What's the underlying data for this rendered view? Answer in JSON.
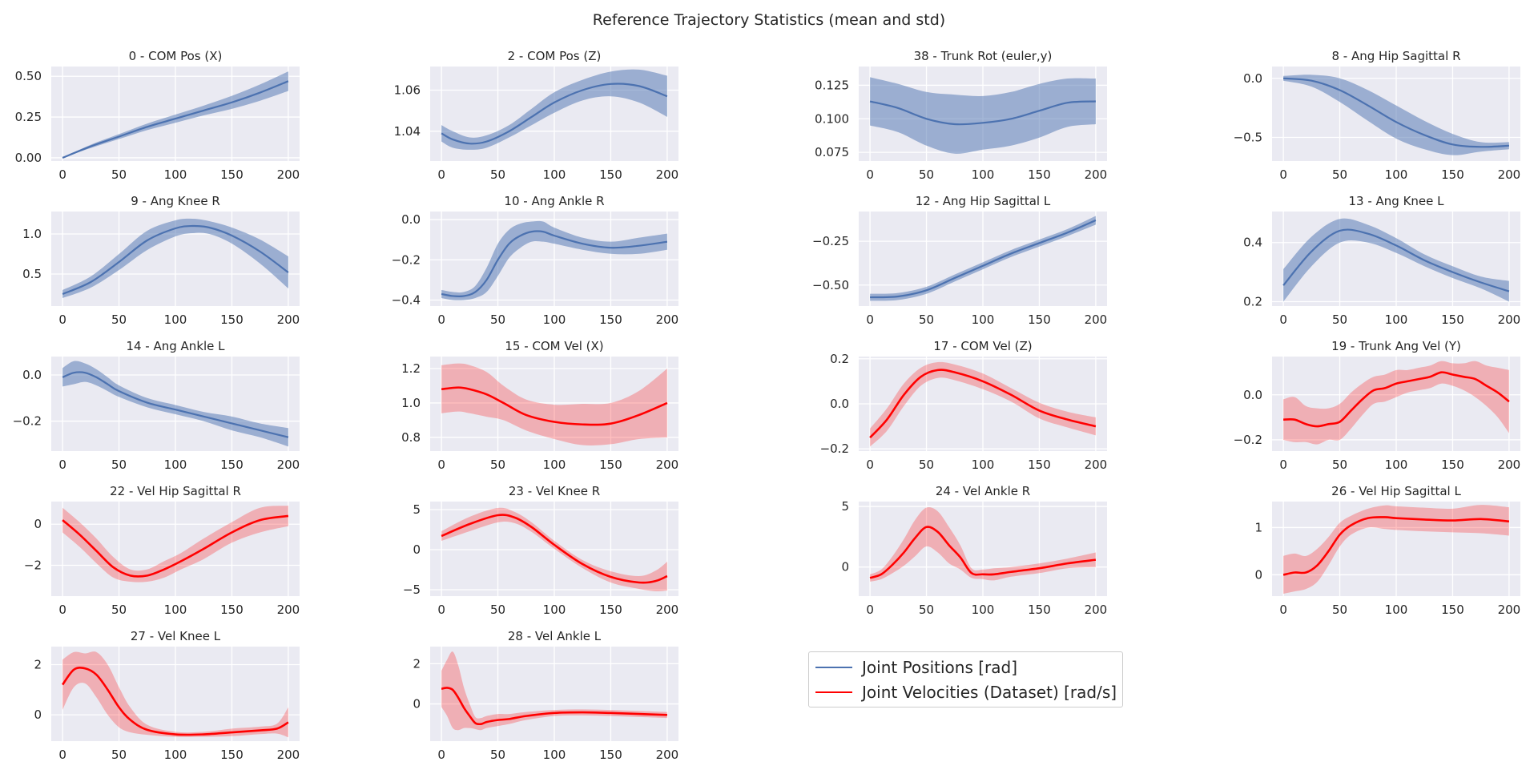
{
  "figure": {
    "title": "Reference Trajectory Statistics (mean and std)",
    "style": {
      "background": "#EAEAF2",
      "grid": true,
      "grid_color": "#ffffff"
    },
    "colors": {
      "positions": "#4C72B0",
      "velocities": "#FF0000"
    },
    "legend": {
      "placement": "lower-center",
      "entries": [
        {
          "label": "Joint Positions [rad]",
          "color": "#4C72B0"
        },
        {
          "label": "Joint Velocities (Dataset) [rad/s]",
          "color": "#FF0000"
        }
      ]
    }
  },
  "chart_data": [
    {
      "type": "line",
      "title": "0 - COM Pos (X)",
      "kind": "position",
      "xlim": [
        0,
        200
      ],
      "ylim": [
        -0.02,
        0.56
      ],
      "xticks": [
        0,
        50,
        100,
        150,
        200
      ],
      "yticks": [
        0.0,
        0.25,
        0.5
      ],
      "ytick_labels": [
        "0.00",
        "0.25",
        "0.50"
      ],
      "x": [
        0,
        25,
        50,
        75,
        100,
        125,
        150,
        175,
        200
      ],
      "mean": [
        0.0,
        0.07,
        0.13,
        0.19,
        0.24,
        0.29,
        0.34,
        0.4,
        0.47
      ],
      "std": [
        0.0,
        0.01,
        0.015,
        0.02,
        0.025,
        0.03,
        0.04,
        0.05,
        0.06
      ]
    },
    {
      "type": "line",
      "title": "2 - COM Pos (Z)",
      "kind": "position",
      "xlim": [
        0,
        200
      ],
      "ylim": [
        1.0255,
        1.0715
      ],
      "xticks": [
        0,
        50,
        100,
        150,
        200
      ],
      "yticks": [
        1.04,
        1.06
      ],
      "ytick_labels": [
        "1.04",
        "1.06"
      ],
      "x": [
        0,
        10,
        25,
        40,
        60,
        80,
        100,
        125,
        150,
        175,
        200
      ],
      "mean": [
        1.039,
        1.036,
        1.034,
        1.035,
        1.04,
        1.047,
        1.054,
        1.06,
        1.063,
        1.062,
        1.057
      ],
      "std": [
        0.004,
        0.004,
        0.003,
        0.003,
        0.003,
        0.004,
        0.005,
        0.005,
        0.006,
        0.008,
        0.01
      ]
    },
    {
      "type": "line",
      "title": "38 - Trunk Rot (euler,y)",
      "kind": "position",
      "xlim": [
        0,
        200
      ],
      "ylim": [
        0.0685,
        0.139
      ],
      "xticks": [
        0,
        50,
        100,
        150,
        200
      ],
      "yticks": [
        0.075,
        0.1,
        0.125
      ],
      "ytick_labels": [
        "0.075",
        "0.100",
        "0.125"
      ],
      "x": [
        0,
        25,
        50,
        75,
        100,
        125,
        150,
        175,
        200
      ],
      "mean": [
        0.113,
        0.108,
        0.1,
        0.096,
        0.097,
        0.1,
        0.106,
        0.112,
        0.113
      ],
      "std": [
        0.018,
        0.018,
        0.02,
        0.022,
        0.02,
        0.02,
        0.02,
        0.018,
        0.017
      ]
    },
    {
      "type": "line",
      "title": "8 - Ang Hip Sagittal R",
      "kind": "position",
      "xlim": [
        0,
        200
      ],
      "ylim": [
        -0.7,
        0.1
      ],
      "xticks": [
        0,
        50,
        100,
        150,
        200
      ],
      "yticks": [
        0.0,
        -0.5
      ],
      "ytick_labels": [
        "0.0",
        "−0.5"
      ],
      "x": [
        0,
        25,
        50,
        75,
        100,
        125,
        150,
        175,
        200
      ],
      "mean": [
        0.0,
        -0.02,
        -0.1,
        -0.23,
        -0.37,
        -0.48,
        -0.56,
        -0.58,
        -0.57
      ],
      "std": [
        0.02,
        0.05,
        0.1,
        0.13,
        0.14,
        0.12,
        0.09,
        0.04,
        0.03
      ]
    },
    {
      "type": "line",
      "title": "9 - Ang Knee R",
      "kind": "position",
      "xlim": [
        0,
        200
      ],
      "ylim": [
        0.1,
        1.28
      ],
      "xticks": [
        0,
        50,
        100,
        150,
        200
      ],
      "yticks": [
        0.5,
        1.0
      ],
      "ytick_labels": [
        "0.5",
        "1.0"
      ],
      "x": [
        0,
        25,
        50,
        75,
        100,
        115,
        130,
        150,
        175,
        200
      ],
      "mean": [
        0.25,
        0.4,
        0.65,
        0.92,
        1.07,
        1.1,
        1.08,
        0.98,
        0.78,
        0.52
      ],
      "std": [
        0.05,
        0.07,
        0.1,
        0.12,
        0.1,
        0.09,
        0.08,
        0.1,
        0.15,
        0.2
      ]
    },
    {
      "type": "line",
      "title": "10 - Ang Ankle R",
      "kind": "position",
      "xlim": [
        0,
        200
      ],
      "ylim": [
        -0.43,
        0.04
      ],
      "xticks": [
        0,
        50,
        100,
        150,
        200
      ],
      "yticks": [
        0.0,
        -0.2,
        -0.4
      ],
      "ytick_labels": [
        "0.0",
        "−0.2",
        "−0.4"
      ],
      "x": [
        0,
        10,
        20,
        30,
        40,
        50,
        60,
        70,
        80,
        90,
        100,
        125,
        150,
        175,
        200
      ],
      "mean": [
        -0.37,
        -0.38,
        -0.38,
        -0.36,
        -0.3,
        -0.2,
        -0.12,
        -0.08,
        -0.06,
        -0.06,
        -0.08,
        -0.12,
        -0.14,
        -0.13,
        -0.11
      ],
      "std": [
        0.02,
        0.02,
        0.02,
        0.03,
        0.06,
        0.08,
        0.07,
        0.06,
        0.05,
        0.05,
        0.04,
        0.03,
        0.03,
        0.04,
        0.04
      ]
    },
    {
      "type": "line",
      "title": "12 - Ang Hip Sagittal L",
      "kind": "position",
      "xlim": [
        0,
        200
      ],
      "ylim": [
        -0.62,
        -0.08
      ],
      "xticks": [
        0,
        50,
        100,
        150,
        200
      ],
      "yticks": [
        -0.25,
        -0.5
      ],
      "ytick_labels": [
        "−0.25",
        "−0.50"
      ],
      "x": [
        0,
        25,
        50,
        75,
        100,
        125,
        150,
        175,
        200
      ],
      "mean": [
        -0.57,
        -0.565,
        -0.53,
        -0.46,
        -0.39,
        -0.32,
        -0.26,
        -0.2,
        -0.13
      ],
      "std": [
        0.02,
        0.02,
        0.02,
        0.02,
        0.02,
        0.02,
        0.02,
        0.02,
        0.025
      ]
    },
    {
      "type": "line",
      "title": "13 - Ang Knee L",
      "kind": "position",
      "xlim": [
        0,
        200
      ],
      "ylim": [
        0.185,
        0.505
      ],
      "xticks": [
        0,
        50,
        100,
        150,
        200
      ],
      "yticks": [
        0.2,
        0.4
      ],
      "ytick_labels": [
        "0.2",
        "0.4"
      ],
      "x": [
        0,
        25,
        50,
        75,
        100,
        125,
        150,
        175,
        200
      ],
      "mean": [
        0.255,
        0.37,
        0.44,
        0.43,
        0.39,
        0.34,
        0.3,
        0.265,
        0.235
      ],
      "std": [
        0.055,
        0.05,
        0.04,
        0.03,
        0.025,
        0.02,
        0.02,
        0.02,
        0.035
      ]
    },
    {
      "type": "line",
      "title": "14 - Ang Ankle L",
      "kind": "position",
      "xlim": [
        0,
        200
      ],
      "ylim": [
        -0.33,
        0.08
      ],
      "xticks": [
        0,
        50,
        100,
        150,
        200
      ],
      "yticks": [
        0.0,
        -0.2
      ],
      "ytick_labels": [
        "0.0",
        "−0.2"
      ],
      "x": [
        0,
        10,
        20,
        30,
        40,
        50,
        75,
        100,
        125,
        150,
        175,
        200
      ],
      "mean": [
        -0.01,
        0.01,
        0.01,
        -0.01,
        -0.04,
        -0.07,
        -0.12,
        -0.15,
        -0.18,
        -0.21,
        -0.24,
        -0.27
      ],
      "std": [
        0.04,
        0.05,
        0.04,
        0.035,
        0.03,
        0.025,
        0.02,
        0.02,
        0.02,
        0.03,
        0.03,
        0.04
      ]
    },
    {
      "type": "line",
      "title": "15 - COM Vel (X)",
      "kind": "velocity",
      "xlim": [
        0,
        200
      ],
      "ylim": [
        0.72,
        1.27
      ],
      "xticks": [
        0,
        50,
        100,
        150,
        200
      ],
      "yticks": [
        0.8,
        1.0,
        1.2
      ],
      "ytick_labels": [
        "0.8",
        "1.0",
        "1.2"
      ],
      "x": [
        0,
        15,
        25,
        40,
        55,
        75,
        100,
        125,
        150,
        175,
        200
      ],
      "mean": [
        1.08,
        1.09,
        1.08,
        1.05,
        1.0,
        0.93,
        0.89,
        0.875,
        0.88,
        0.93,
        1.0
      ],
      "std": [
        0.14,
        0.14,
        0.14,
        0.13,
        0.1,
        0.09,
        0.1,
        0.12,
        0.12,
        0.14,
        0.2
      ]
    },
    {
      "type": "line",
      "title": "17 - COM Vel (Z)",
      "kind": "velocity",
      "xlim": [
        0,
        200
      ],
      "ylim": [
        -0.21,
        0.21
      ],
      "xticks": [
        0,
        50,
        100,
        150,
        200
      ],
      "yticks": [
        0.2,
        0.0,
        -0.2
      ],
      "ytick_labels": [
        "0.2",
        "0.0",
        "−0.2"
      ],
      "x": [
        0,
        15,
        30,
        45,
        60,
        75,
        100,
        125,
        150,
        175,
        200
      ],
      "mean": [
        -0.15,
        -0.07,
        0.04,
        0.12,
        0.15,
        0.14,
        0.1,
        0.04,
        -0.03,
        -0.07,
        -0.1
      ],
      "std": [
        0.04,
        0.05,
        0.05,
        0.04,
        0.035,
        0.035,
        0.035,
        0.03,
        0.035,
        0.035,
        0.04
      ]
    },
    {
      "type": "line",
      "title": "19 - Trunk Ang Vel (Y)",
      "kind": "velocity",
      "xlim": [
        0,
        200
      ],
      "ylim": [
        -0.25,
        0.17
      ],
      "xticks": [
        0,
        50,
        100,
        150,
        200
      ],
      "yticks": [
        0.0,
        -0.2
      ],
      "ytick_labels": [
        "0.0",
        "−0.2"
      ],
      "x": [
        0,
        10,
        20,
        30,
        40,
        50,
        60,
        70,
        80,
        90,
        100,
        110,
        120,
        130,
        140,
        150,
        160,
        170,
        180,
        190,
        200
      ],
      "mean": [
        -0.11,
        -0.11,
        -0.13,
        -0.14,
        -0.13,
        -0.12,
        -0.07,
        -0.02,
        0.02,
        0.03,
        0.05,
        0.06,
        0.07,
        0.08,
        0.1,
        0.09,
        0.08,
        0.07,
        0.04,
        0.01,
        -0.03
      ],
      "std": [
        0.09,
        0.1,
        0.08,
        0.08,
        0.07,
        0.08,
        0.08,
        0.07,
        0.06,
        0.06,
        0.06,
        0.05,
        0.05,
        0.05,
        0.05,
        0.05,
        0.06,
        0.08,
        0.09,
        0.11,
        0.14
      ]
    },
    {
      "type": "line",
      "title": "22 - Vel Hip Sagittal R",
      "kind": "velocity",
      "xlim": [
        0,
        200
      ],
      "ylim": [
        -3.5,
        1.1
      ],
      "xticks": [
        0,
        50,
        100,
        150,
        200
      ],
      "yticks": [
        0,
        -2
      ],
      "ytick_labels": [
        "0",
        "−2"
      ],
      "x": [
        0,
        15,
        30,
        45,
        60,
        75,
        90,
        105,
        125,
        150,
        175,
        200
      ],
      "mean": [
        0.2,
        -0.5,
        -1.3,
        -2.1,
        -2.5,
        -2.5,
        -2.2,
        -1.8,
        -1.2,
        -0.4,
        0.2,
        0.4
      ],
      "std": [
        0.6,
        0.6,
        0.6,
        0.5,
        0.3,
        0.3,
        0.4,
        0.4,
        0.5,
        0.5,
        0.6,
        0.5
      ]
    },
    {
      "type": "line",
      "title": "23 - Vel Knee R",
      "kind": "velocity",
      "xlim": [
        0,
        200
      ],
      "ylim": [
        -5.8,
        6.0
      ],
      "xticks": [
        0,
        50,
        100,
        150,
        200
      ],
      "yticks": [
        5,
        0,
        -5
      ],
      "ytick_labels": [
        "5",
        "0",
        "−5"
      ],
      "x": [
        0,
        25,
        50,
        65,
        80,
        100,
        125,
        150,
        175,
        190,
        200
      ],
      "mean": [
        1.7,
        3.2,
        4.3,
        4.0,
        2.8,
        0.6,
        -1.8,
        -3.4,
        -4.1,
        -3.9,
        -3.3
      ],
      "std": [
        0.6,
        0.9,
        0.9,
        0.7,
        0.6,
        0.5,
        0.5,
        0.7,
        0.8,
        1.3,
        1.8
      ]
    },
    {
      "type": "line",
      "title": "24 - Vel Ankle R",
      "kind": "velocity",
      "xlim": [
        0,
        200
      ],
      "ylim": [
        -2.4,
        5.4
      ],
      "xticks": [
        0,
        50,
        100,
        150,
        200
      ],
      "yticks": [
        5,
        0
      ],
      "ytick_labels": [
        "5",
        "0"
      ],
      "x": [
        0,
        10,
        20,
        30,
        40,
        50,
        60,
        70,
        80,
        90,
        100,
        110,
        125,
        150,
        175,
        200
      ],
      "mean": [
        -0.9,
        -0.6,
        0.2,
        1.2,
        2.4,
        3.3,
        2.9,
        1.8,
        0.8,
        -0.5,
        -0.6,
        -0.6,
        -0.4,
        -0.1,
        0.3,
        0.6
      ],
      "std": [
        0.3,
        0.4,
        0.7,
        1.1,
        1.5,
        1.6,
        1.7,
        1.5,
        1.0,
        0.4,
        0.4,
        0.5,
        0.4,
        0.4,
        0.4,
        0.6
      ]
    },
    {
      "type": "line",
      "title": "26 - Vel Hip Sagittal L",
      "kind": "velocity",
      "xlim": [
        0,
        200
      ],
      "ylim": [
        -0.45,
        1.55
      ],
      "xticks": [
        0,
        50,
        100,
        150,
        200
      ],
      "yticks": [
        1,
        0
      ],
      "ytick_labels": [
        "1",
        "0"
      ],
      "x": [
        0,
        10,
        20,
        30,
        40,
        50,
        60,
        75,
        90,
        100,
        125,
        150,
        175,
        200
      ],
      "mean": [
        0.0,
        0.05,
        0.05,
        0.2,
        0.5,
        0.85,
        1.05,
        1.2,
        1.22,
        1.2,
        1.17,
        1.15,
        1.18,
        1.13
      ],
      "std": [
        0.4,
        0.4,
        0.35,
        0.35,
        0.3,
        0.25,
        0.2,
        0.2,
        0.25,
        0.25,
        0.25,
        0.25,
        0.3,
        0.3
      ]
    },
    {
      "type": "line",
      "title": "27 - Vel Knee L",
      "kind": "velocity",
      "xlim": [
        0,
        200
      ],
      "ylim": [
        -1.05,
        2.72
      ],
      "xticks": [
        0,
        50,
        100,
        150,
        200
      ],
      "yticks": [
        2,
        0
      ],
      "ytick_labels": [
        "2",
        "0"
      ],
      "x": [
        0,
        10,
        20,
        30,
        40,
        50,
        60,
        75,
        100,
        125,
        150,
        175,
        190,
        200
      ],
      "mean": [
        1.2,
        1.8,
        1.85,
        1.6,
        1.0,
        0.3,
        -0.2,
        -0.6,
        -0.78,
        -0.78,
        -0.7,
        -0.62,
        -0.55,
        -0.3
      ],
      "std": [
        1.0,
        0.7,
        0.6,
        0.9,
        1.0,
        0.8,
        0.5,
        0.2,
        0.1,
        0.1,
        0.15,
        0.15,
        0.2,
        0.6
      ]
    },
    {
      "type": "line",
      "title": "28 - Vel Ankle L",
      "kind": "velocity",
      "xlim": [
        0,
        200
      ],
      "ylim": [
        -1.85,
        2.85
      ],
      "xticks": [
        0,
        50,
        100,
        150,
        200
      ],
      "yticks": [
        2,
        0
      ],
      "ytick_labels": [
        "2",
        "0"
      ],
      "x": [
        0,
        5,
        10,
        15,
        20,
        25,
        30,
        35,
        40,
        50,
        60,
        75,
        100,
        125,
        150,
        175,
        200
      ],
      "mean": [
        0.75,
        0.8,
        0.7,
        0.3,
        -0.2,
        -0.6,
        -0.95,
        -1.0,
        -0.9,
        -0.8,
        -0.75,
        -0.6,
        -0.45,
        -0.42,
        -0.45,
        -0.5,
        -0.55
      ],
      "std": [
        0.9,
        1.4,
        1.9,
        1.6,
        1.0,
        0.6,
        0.3,
        0.3,
        0.3,
        0.3,
        0.25,
        0.2,
        0.15,
        0.15,
        0.15,
        0.15,
        0.15
      ]
    }
  ]
}
